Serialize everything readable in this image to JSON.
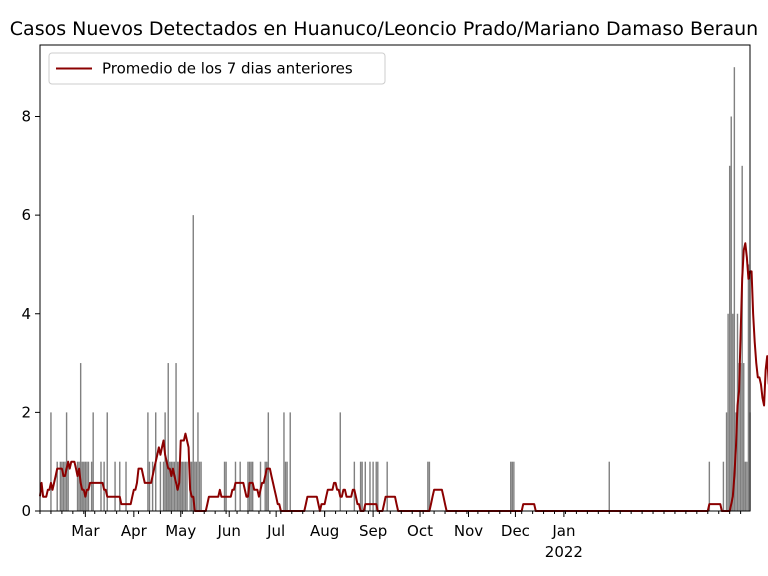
{
  "chart_data": {
    "type": "bar",
    "title": "Casos Nuevos Detectados en Huanuco/Leoncio Prado/Mariano Damaso Beraun",
    "xlabel": "",
    "ylabel": "",
    "x_start": "2021-01-31",
    "ylim": [
      0,
      9.45
    ],
    "yticks": [
      0,
      2,
      4,
      6,
      8
    ],
    "xticks": [
      {
        "label": "Mar",
        "date": "2021-03-01"
      },
      {
        "label": "Apr",
        "date": "2021-04-01"
      },
      {
        "label": "May",
        "date": "2021-05-01"
      },
      {
        "label": "Jun",
        "date": "2021-06-01"
      },
      {
        "label": "Jul",
        "date": "2021-07-01"
      },
      {
        "label": "Aug",
        "date": "2021-08-01"
      },
      {
        "label": "Sep",
        "date": "2021-09-01"
      },
      {
        "label": "Oct",
        "date": "2021-10-01"
      },
      {
        "label": "Nov",
        "date": "2021-11-01"
      },
      {
        "label": "Dec",
        "date": "2021-12-01"
      },
      {
        "label": "Jan",
        "date": "2022-01-01",
        "sublabel": "2022"
      }
    ],
    "legend": {
      "position": "top-left",
      "entries": [
        "Promedio de los 7 dias anteriores"
      ]
    },
    "grid": false,
    "colors": {
      "bars": "#808080",
      "line": "#8b0000"
    },
    "series": [
      {
        "type": "bar",
        "values": [
          0,
          0,
          0,
          0,
          0,
          0,
          0,
          2,
          0,
          0,
          0,
          1,
          0,
          1,
          1,
          1,
          1,
          2,
          1,
          0,
          0,
          0,
          0,
          0,
          1,
          1,
          3,
          1,
          1,
          1,
          1,
          1,
          0,
          1,
          2,
          0,
          0,
          0,
          0,
          1,
          0,
          1,
          0,
          2,
          0,
          0,
          0,
          0,
          1,
          0,
          0,
          1,
          0,
          0,
          0,
          1,
          0,
          0,
          0,
          0,
          0,
          0,
          0,
          0,
          0,
          0,
          0,
          0,
          0,
          2,
          1,
          0,
          1,
          0,
          2,
          0,
          0,
          1,
          0,
          1,
          2,
          1,
          3,
          1,
          1,
          1,
          1,
          3,
          1,
          1,
          1,
          1,
          1,
          1,
          1,
          0,
          1,
          1,
          6,
          1,
          1,
          2,
          1,
          1,
          0,
          0,
          0,
          0,
          0,
          0,
          0,
          0,
          0,
          0,
          0,
          0,
          0,
          0,
          1,
          1,
          0,
          0,
          0,
          0,
          0,
          1,
          0,
          0,
          1,
          0,
          0,
          0,
          0,
          1,
          1,
          1,
          1,
          0,
          0,
          0,
          0,
          1,
          0,
          0,
          1,
          1,
          2,
          0,
          0,
          0,
          0,
          0,
          0,
          0,
          0,
          0,
          2,
          1,
          1,
          0,
          2,
          0,
          0,
          0,
          0,
          0,
          0,
          0,
          0,
          0,
          0,
          0,
          0,
          0,
          0,
          0,
          0,
          0,
          0,
          0,
          0,
          0,
          0,
          0,
          0,
          0,
          0,
          0,
          0,
          0,
          0,
          0,
          2,
          0,
          0,
          0,
          0,
          0,
          0,
          0,
          0,
          1,
          0,
          0,
          0,
          1,
          1,
          0,
          1,
          0,
          0,
          1,
          0,
          1,
          0,
          1,
          1,
          0,
          0,
          0,
          0,
          0,
          1,
          0,
          0,
          0,
          0,
          0,
          0,
          0,
          0,
          0,
          0,
          0,
          0,
          0,
          0,
          0,
          0,
          0,
          0,
          0,
          0,
          0,
          0,
          0,
          0,
          0,
          1,
          1,
          0,
          0,
          0,
          0,
          0,
          0,
          0,
          0,
          0,
          0,
          0,
          0,
          0,
          0,
          0,
          0,
          0,
          0,
          0,
          0,
          0,
          0,
          0,
          0,
          0,
          0,
          0,
          0,
          0,
          0,
          0,
          0,
          0,
          0,
          0,
          0,
          0,
          0,
          0,
          0,
          0,
          0,
          0,
          0,
          0,
          0,
          0,
          0,
          0,
          0,
          0,
          1,
          1,
          1,
          0,
          0,
          0,
          0,
          0,
          0,
          0,
          0,
          0,
          0,
          0,
          0,
          0,
          0,
          0,
          0,
          0,
          0,
          0,
          0,
          0,
          0,
          0,
          0,
          0,
          0,
          0,
          0,
          0,
          0,
          0,
          0,
          0,
          0,
          0,
          0,
          0,
          0,
          0,
          0,
          0,
          0,
          0,
          0,
          0,
          0,
          0,
          0,
          0,
          0,
          0,
          0,
          0,
          0,
          0,
          0,
          0,
          0,
          0,
          0,
          1,
          0,
          0,
          0,
          0,
          0,
          0,
          0,
          0,
          0,
          0,
          0,
          0,
          0,
          0,
          0,
          0,
          0,
          0,
          0,
          0,
          0,
          0,
          0,
          0,
          0,
          0,
          0,
          0,
          0,
          0,
          0,
          0,
          0,
          0,
          0,
          0,
          0,
          0,
          0,
          0,
          0,
          0,
          0,
          0,
          0,
          0,
          0,
          0,
          0,
          0,
          0,
          0,
          0,
          0,
          0,
          0,
          0,
          0,
          0,
          0,
          0,
          0,
          0,
          1,
          0,
          0,
          0,
          0,
          0,
          0,
          0,
          0,
          1,
          0,
          2,
          4,
          7,
          8,
          4,
          9,
          2,
          4,
          3,
          3,
          7,
          3,
          1,
          1,
          5,
          2
        ]
      },
      {
        "type": "line",
        "name": "Promedio de los 7 dias anteriores",
        "values": [
          0.3,
          0.57,
          0.29,
          0.29,
          0.29,
          0.43,
          0.43,
          0.57,
          0.43,
          0.57,
          0.71,
          0.86,
          0.86,
          0.86,
          0.86,
          0.71,
          0.71,
          0.86,
          1.0,
          0.86,
          1.0,
          1.0,
          1.0,
          0.86,
          0.71,
          0.86,
          0.57,
          0.43,
          0.43,
          0.29,
          0.43,
          0.43,
          0.57,
          0.57,
          0.57,
          0.57,
          0.57,
          0.57,
          0.57,
          0.57,
          0.57,
          0.43,
          0.43,
          0.29,
          0.29,
          0.29,
          0.29,
          0.29,
          0.29,
          0.29,
          0.29,
          0.29,
          0.14,
          0.14,
          0.14,
          0.14,
          0.14,
          0.14,
          0.14,
          0.29,
          0.43,
          0.43,
          0.57,
          0.86,
          0.86,
          0.86,
          0.71,
          0.57,
          0.57,
          0.57,
          0.57,
          0.57,
          0.71,
          0.86,
          1.0,
          1.14,
          1.29,
          1.14,
          1.29,
          1.43,
          1.14,
          1.0,
          0.86,
          0.86,
          0.71,
          0.86,
          0.71,
          0.57,
          0.43,
          0.57,
          1.43,
          1.43,
          1.43,
          1.57,
          1.43,
          1.29,
          0.43,
          0.29,
          0.29,
          0.0,
          0.0,
          0.0,
          0.0,
          0.0,
          0.0,
          0.0,
          0.0,
          0.14,
          0.29,
          0.29,
          0.29,
          0.29,
          0.29,
          0.29,
          0.29,
          0.43,
          0.29,
          0.29,
          0.29,
          0.29,
          0.29,
          0.29,
          0.29,
          0.43,
          0.43,
          0.57,
          0.57,
          0.57,
          0.57,
          0.57,
          0.57,
          0.43,
          0.29,
          0.29,
          0.57,
          0.57,
          0.57,
          0.43,
          0.43,
          0.43,
          0.29,
          0.43,
          0.57,
          0.57,
          0.71,
          0.86,
          0.86,
          0.86,
          0.71,
          0.57,
          0.43,
          0.29,
          0.14,
          0.14,
          0.0,
          0.0,
          0.0,
          0.0,
          0.0,
          0.0,
          0.0,
          0.0,
          0.0,
          0.0,
          0.0,
          0.0,
          0.0,
          0.0,
          0.0,
          0.0,
          0.14,
          0.29,
          0.29,
          0.29,
          0.29,
          0.29,
          0.29,
          0.29,
          0.14,
          0.0,
          0.14,
          0.14,
          0.14,
          0.29,
          0.43,
          0.43,
          0.43,
          0.43,
          0.57,
          0.57,
          0.43,
          0.43,
          0.29,
          0.29,
          0.43,
          0.43,
          0.29,
          0.29,
          0.29,
          0.29,
          0.43,
          0.43,
          0.29,
          0.14,
          0.14,
          0.0,
          0.0,
          0.0,
          0.14,
          0.14,
          0.14,
          0.14,
          0.14,
          0.14,
          0.14,
          0.14,
          0.0,
          0.0,
          0.0,
          0.0,
          0.14,
          0.29,
          0.29,
          0.29,
          0.29,
          0.29,
          0.29,
          0.29,
          0.14,
          0.0,
          0.0,
          0.0,
          0.0,
          0.0,
          0.0,
          0.0,
          0.0,
          0.0,
          0.0,
          0.0,
          0.0,
          0.0,
          0.0,
          0.0,
          0.0,
          0.0,
          0.0,
          0.0,
          0.0,
          0.0,
          0.14,
          0.29,
          0.43,
          0.43,
          0.43,
          0.43,
          0.43,
          0.43,
          0.29,
          0.14,
          0.0,
          0.0,
          0.0,
          0.0,
          0.0,
          0.0,
          0.0,
          0.0,
          0.0,
          0.0,
          0.0,
          0.0,
          0.0,
          0.0,
          0.0,
          0.0,
          0.0,
          0.0,
          0.0,
          0.0,
          0.0,
          0.0,
          0.0,
          0.0,
          0.0,
          0.0,
          0.0,
          0.0,
          0.0,
          0.0,
          0.0,
          0.0,
          0.0,
          0.0,
          0.0,
          0.0,
          0.0,
          0.0,
          0.0,
          0.0,
          0.0,
          0.0,
          0.0,
          0.0,
          0.0,
          0.0,
          0.0,
          0.0,
          0.0,
          0.14,
          0.14,
          0.14,
          0.14,
          0.14,
          0.14,
          0.14,
          0.14,
          0.0,
          0.0,
          0.0,
          0.0,
          0.0,
          0.0,
          0.0,
          0.0,
          0.0,
          0.0,
          0.0,
          0.0,
          0.0,
          0.0,
          0.0,
          0.0,
          0.0,
          0.0,
          0.0,
          0.0,
          0.0,
          0.0,
          0.0,
          0.0,
          0.0,
          0.0,
          0.0,
          0.0,
          0.0,
          0.0,
          0.0,
          0.0,
          0.0,
          0.0,
          0.0,
          0.0,
          0.0,
          0.0,
          0.0,
          0.0,
          0.0,
          0.0,
          0.0,
          0.0,
          0.0,
          0.0,
          0.0,
          0.0,
          0.0,
          0.0,
          0.0,
          0.0,
          0.0,
          0.0,
          0.0,
          0.0,
          0.0,
          0.0,
          0.0,
          0.0,
          0.0,
          0.0,
          0.0,
          0.0,
          0.0,
          0.0,
          0.0,
          0.0,
          0.0,
          0.0,
          0.0,
          0.0,
          0.0,
          0.0,
          0.0,
          0.0,
          0.0,
          0.0,
          0.0,
          0.0,
          0.0,
          0.0,
          0.0,
          0.0,
          0.0,
          0.0,
          0.0,
          0.0,
          0.0,
          0.0,
          0.0,
          0.0,
          0.0,
          0.0,
          0.0,
          0.0,
          0.0,
          0.0,
          0.0,
          0.0,
          0.0,
          0.0,
          0.0,
          0.0,
          0.0,
          0.0,
          0.0,
          0.0,
          0.0,
          0.0,
          0.0,
          0.14,
          0.14,
          0.14,
          0.14,
          0.14,
          0.14,
          0.14,
          0.14,
          0.0,
          0.0,
          0.0,
          0.0,
          0.0,
          0.0,
          0.14,
          0.29,
          0.71,
          1.29,
          2.14,
          2.43,
          3.57,
          4.71,
          5.29,
          5.43,
          5.14,
          4.71,
          4.86,
          4.86,
          4.0,
          3.43,
          3.0,
          2.71,
          2.71,
          2.57,
          2.29,
          2.14,
          2.86,
          3.14,
          2.57
        ]
      }
    ]
  }
}
